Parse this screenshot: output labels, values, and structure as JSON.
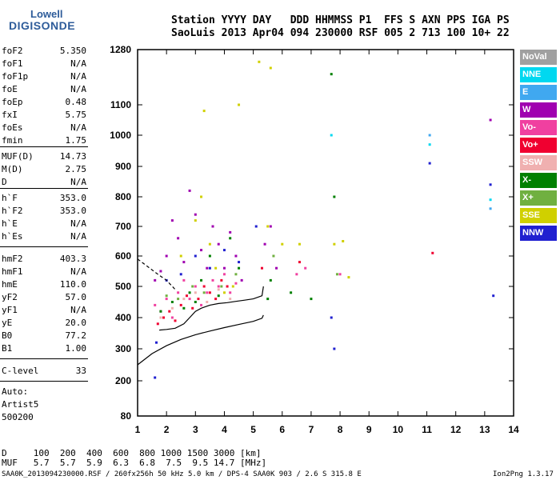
{
  "logo": {
    "line1": "Lowell",
    "line2": "DIGISONDE"
  },
  "header": {
    "line1": "Station YYYY DAY   DDD HHMMSS P1  FFS S AXN PPS IGA PS",
    "line2": "SaoLuis 2013 Apr04 094 230000 RSF 005 2 713 100 10+ 22"
  },
  "params": [
    {
      "name": "foF2",
      "value": "5.350"
    },
    {
      "name": "foF1",
      "value": "N/A"
    },
    {
      "name": "foF1p",
      "value": "N/A"
    },
    {
      "name": "foE",
      "value": "N/A"
    },
    {
      "name": "foEp",
      "value": "0.48"
    },
    {
      "name": "fxI",
      "value": "5.75"
    },
    {
      "name": "foEs",
      "value": "N/A"
    },
    {
      "name": "fmin",
      "value": "1.75"
    },
    {
      "name": "MUF(D)",
      "value": "14.73"
    },
    {
      "name": "M(D)",
      "value": "2.75"
    },
    {
      "name": "D",
      "value": "N/A"
    },
    {
      "name": "h`F",
      "value": "353.0"
    },
    {
      "name": "h`F2",
      "value": "353.0"
    },
    {
      "name": "h`E",
      "value": "N/A"
    },
    {
      "name": "h`Es",
      "value": "N/A"
    },
    {
      "name": "hmF2",
      "value": "403.3"
    },
    {
      "name": "hmF1",
      "value": "N/A"
    },
    {
      "name": "hmE",
      "value": "110.0"
    },
    {
      "name": "yF2",
      "value": "57.0"
    },
    {
      "name": "yF1",
      "value": "N/A"
    },
    {
      "name": "yE",
      "value": "20.0"
    },
    {
      "name": "B0",
      "value": "77.2"
    },
    {
      "name": "B1",
      "value": "1.00"
    },
    {
      "name": "C-level",
      "value": "33"
    }
  ],
  "auto": {
    "line1": "Auto:",
    "line2": "Artist5",
    "line3": "500200"
  },
  "legend": [
    {
      "label": "NoVal",
      "color": "#a0a0a0"
    },
    {
      "label": "NNE",
      "color": "#00d8f0"
    },
    {
      "label": "E",
      "color": "#40a8f0"
    },
    {
      "label": "W",
      "color": "#a000b0"
    },
    {
      "label": "Vo-",
      "color": "#f040a0"
    },
    {
      "label": "Vo+",
      "color": "#f00030"
    },
    {
      "label": "SSW",
      "color": "#f0b0b0"
    },
    {
      "label": "X-",
      "color": "#008000"
    },
    {
      "label": "X+",
      "color": "#70b040"
    },
    {
      "label": "SSE",
      "color": "#d0d000"
    },
    {
      "label": "NNW",
      "color": "#2020d0"
    }
  ],
  "bottom": {
    "d_line": "D     100  200  400  600  800 1000 1500 3000 [km]",
    "muf_line": "MUF   5.7  5.7  5.9  6.3  6.8  7.5  9.5 14.7 [MHz]"
  },
  "footer": {
    "left": "SAA0K_2013094230000.RSF / 260fx256h 50 kHz 5.0 km / DPS-4 SAA0K 903 / 2.6 S 315.8 E",
    "right": "Ion2Png 1.3.17"
  },
  "chart_data": {
    "type": "scatter",
    "x_ticks": [
      "1",
      "2",
      "3",
      "4",
      "5",
      "6",
      "7",
      "8",
      "9",
      "10",
      "11",
      "12",
      "13",
      "14"
    ],
    "y_ticks": [
      "80",
      "200",
      "300",
      "400",
      "500",
      "600",
      "700",
      "800",
      "900",
      "1000",
      "1100",
      "1280"
    ],
    "xlim": [
      1,
      14
    ],
    "ylim": [
      80,
      1280
    ],
    "series": [
      {
        "color": "#a000b0",
        "points": [
          [
            1.6,
            520
          ],
          [
            1.8,
            550
          ],
          [
            2.0,
            600
          ],
          [
            2.2,
            720
          ],
          [
            2.4,
            660
          ],
          [
            2.6,
            580
          ],
          [
            2.8,
            820
          ],
          [
            3.0,
            740
          ],
          [
            3.2,
            620
          ],
          [
            3.4,
            560
          ],
          [
            3.6,
            700
          ],
          [
            3.8,
            640
          ],
          [
            4.0,
            560
          ],
          [
            4.2,
            680
          ],
          [
            4.4,
            600
          ],
          [
            4.6,
            520
          ],
          [
            5.4,
            640
          ],
          [
            5.6,
            700
          ],
          [
            5.8,
            560
          ],
          [
            13.2,
            1050
          ]
        ]
      },
      {
        "color": "#f040a0",
        "points": [
          [
            1.6,
            440
          ],
          [
            1.8,
            420
          ],
          [
            2.0,
            460
          ],
          [
            2.2,
            400
          ],
          [
            2.4,
            480
          ],
          [
            2.6,
            520
          ],
          [
            2.8,
            460
          ],
          [
            3.0,
            500
          ],
          [
            3.2,
            440
          ],
          [
            3.4,
            480
          ],
          [
            3.6,
            520
          ],
          [
            3.8,
            500
          ],
          [
            4.0,
            540
          ],
          [
            4.2,
            480
          ],
          [
            4.4,
            510
          ],
          [
            6.5,
            540
          ],
          [
            6.8,
            560
          ],
          [
            8.0,
            540
          ]
        ]
      },
      {
        "color": "#f00030",
        "points": [
          [
            1.7,
            380
          ],
          [
            1.9,
            400
          ],
          [
            2.1,
            420
          ],
          [
            2.3,
            390
          ],
          [
            2.5,
            440
          ],
          [
            2.7,
            470
          ],
          [
            2.9,
            430
          ],
          [
            3.1,
            460
          ],
          [
            3.3,
            500
          ],
          [
            3.5,
            480
          ],
          [
            3.7,
            460
          ],
          [
            3.9,
            520
          ],
          [
            4.1,
            500
          ],
          [
            5.3,
            560
          ],
          [
            6.6,
            580
          ],
          [
            11.2,
            610
          ]
        ]
      },
      {
        "color": "#d0d000",
        "points": [
          [
            2.5,
            600
          ],
          [
            3.0,
            720
          ],
          [
            3.3,
            1080
          ],
          [
            3.5,
            640
          ],
          [
            3.7,
            560
          ],
          [
            4.0,
            480
          ],
          [
            4.3,
            500
          ],
          [
            4.5,
            1100
          ],
          [
            5.2,
            1240
          ],
          [
            5.5,
            700
          ],
          [
            5.6,
            1220
          ],
          [
            6.0,
            640
          ],
          [
            6.6,
            640
          ],
          [
            7.8,
            640
          ],
          [
            8.1,
            650
          ],
          [
            8.3,
            530
          ],
          [
            3.2,
            800
          ]
        ]
      },
      {
        "color": "#008000",
        "points": [
          [
            1.8,
            420
          ],
          [
            2.2,
            450
          ],
          [
            2.6,
            430
          ],
          [
            2.8,
            480
          ],
          [
            3.0,
            450
          ],
          [
            3.2,
            520
          ],
          [
            3.5,
            600
          ],
          [
            3.8,
            470
          ],
          [
            4.2,
            660
          ],
          [
            4.5,
            560
          ],
          [
            5.5,
            460
          ],
          [
            5.6,
            520
          ],
          [
            6.3,
            480
          ],
          [
            7.0,
            460
          ],
          [
            7.7,
            1200
          ],
          [
            7.8,
            800
          ]
        ]
      },
      {
        "color": "#70b040",
        "points": [
          [
            2.0,
            470
          ],
          [
            2.4,
            460
          ],
          [
            2.9,
            500
          ],
          [
            3.3,
            480
          ],
          [
            3.9,
            500
          ],
          [
            4.4,
            540
          ],
          [
            5.7,
            600
          ],
          [
            7.9,
            540
          ]
        ]
      },
      {
        "color": "#2020d0",
        "points": [
          [
            1.6,
            210
          ],
          [
            1.65,
            320
          ],
          [
            2.0,
            520
          ],
          [
            2.5,
            540
          ],
          [
            3.0,
            600
          ],
          [
            3.5,
            560
          ],
          [
            4.0,
            620
          ],
          [
            4.5,
            580
          ],
          [
            5.1,
            700
          ],
          [
            7.8,
            300
          ],
          [
            7.7,
            400
          ],
          [
            11.1,
            910
          ],
          [
            13.2,
            840
          ],
          [
            13.3,
            470
          ]
        ]
      },
      {
        "color": "#00d8f0",
        "points": [
          [
            11.1,
            970
          ],
          [
            13.2,
            790
          ],
          [
            7.7,
            1000
          ]
        ]
      },
      {
        "color": "#40a8f0",
        "points": [
          [
            11.1,
            1000
          ],
          [
            13.2,
            760
          ]
        ]
      },
      {
        "color": "#f0b0b0",
        "points": [
          [
            1.8,
            400
          ],
          [
            2.2,
            430
          ],
          [
            2.6,
            460
          ],
          [
            3.0,
            480
          ],
          [
            3.4,
            450
          ],
          [
            3.8,
            490
          ],
          [
            4.2,
            460
          ]
        ]
      }
    ],
    "curves": [
      {
        "name": "profile-lower",
        "color": "#000000",
        "points": [
          [
            1.0,
            250
          ],
          [
            1.5,
            285
          ],
          [
            2.0,
            310
          ],
          [
            2.5,
            330
          ],
          [
            3.0,
            345
          ],
          [
            3.5,
            357
          ],
          [
            4.0,
            368
          ],
          [
            4.5,
            378
          ],
          [
            5.0,
            388
          ],
          [
            5.3,
            398
          ],
          [
            5.35,
            408
          ]
        ]
      },
      {
        "name": "trace-upper",
        "color": "#000000",
        "points": [
          [
            1.0,
            590
          ],
          [
            1.7,
            540
          ],
          [
            2.0,
            520
          ],
          [
            2.3,
            490
          ]
        ]
      },
      {
        "name": "trace-virtual",
        "color": "#000000",
        "points": [
          [
            1.75,
            360
          ],
          [
            2.0,
            362
          ],
          [
            2.3,
            366
          ],
          [
            2.6,
            380
          ],
          [
            2.8,
            400
          ],
          [
            3.0,
            420
          ],
          [
            3.2,
            430
          ],
          [
            3.5,
            440
          ],
          [
            3.8,
            445
          ],
          [
            4.1,
            448
          ],
          [
            4.4,
            452
          ],
          [
            4.7,
            456
          ],
          [
            5.0,
            460
          ],
          [
            5.3,
            470
          ],
          [
            5.35,
            500
          ]
        ]
      }
    ]
  }
}
